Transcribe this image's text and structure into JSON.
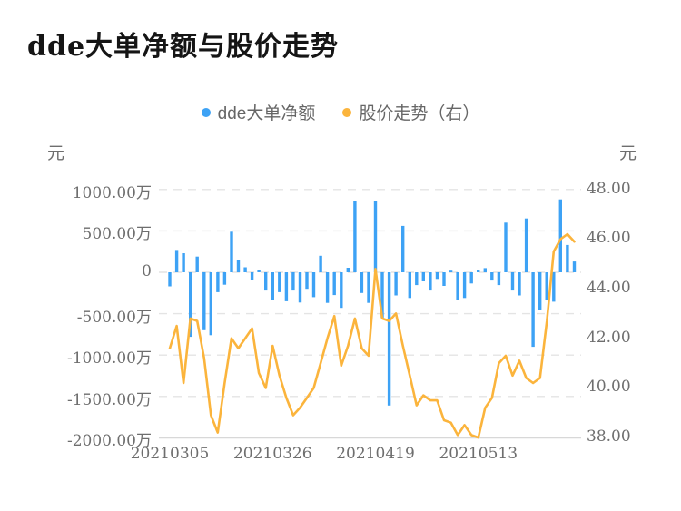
{
  "title": "dde大单净额与股价走势",
  "legend": {
    "items": [
      {
        "label": "dde大单净额",
        "color": "#3DA2F5"
      },
      {
        "label": "股价走势（右）",
        "color": "#FBB43C"
      }
    ]
  },
  "axes": {
    "left": {
      "unit": "元",
      "tick_labels": [
        "1000.00万",
        "500.00万",
        "0",
        "-500.00万",
        "-1000.00万",
        "-1500.00万",
        "-2000.00万"
      ],
      "tick_values_wan": [
        1000,
        500,
        0,
        -500,
        -1000,
        -1500,
        -2000
      ]
    },
    "right": {
      "unit": "元",
      "tick_labels": [
        "48.00",
        "46.00",
        "44.00",
        "42.00",
        "40.00",
        "38.00"
      ],
      "tick_values": [
        48,
        46,
        44,
        42,
        40,
        38
      ]
    },
    "x": {
      "tick_labels": [
        "20210305",
        "20210326",
        "20210419",
        "20210513"
      ],
      "tick_indices": [
        0,
        15,
        30,
        45
      ]
    }
  },
  "colors": {
    "bar": "#3DA2F5",
    "line": "#FBB43C",
    "gridline": "#e4e4e4",
    "baseline": "#d8d8d8"
  },
  "chart_data": {
    "type": "bar+line",
    "title": "dde大单净额与股价走势",
    "n_points": 60,
    "x_tick_labels": [
      "20210305",
      "20210326",
      "20210419",
      "20210513"
    ],
    "x_tick_indices": [
      0,
      15,
      30,
      45
    ],
    "grid": "horizontal-dashed",
    "legend_position": "top-center",
    "left_ylim_wan": [
      -2000,
      1000
    ],
    "right_ylim": [
      38,
      48
    ],
    "series": [
      {
        "name": "dde大单净额",
        "type": "bar",
        "axis": "left",
        "unit": "万元",
        "color": "#3DA2F5",
        "values": [
          -170,
          270,
          230,
          -780,
          190,
          -700,
          -760,
          -240,
          -150,
          490,
          150,
          60,
          -90,
          30,
          -220,
          -330,
          -240,
          -350,
          -220,
          -365,
          -200,
          -300,
          200,
          -370,
          -275,
          -430,
          55,
          860,
          -250,
          -370,
          855,
          -550,
          -1610,
          -280,
          560,
          -310,
          -155,
          -110,
          -220,
          -80,
          -165,
          20,
          -330,
          -310,
          -135,
          25,
          50,
          -100,
          -155,
          600,
          -220,
          -280,
          650,
          -900,
          -450,
          -340,
          -355,
          880,
          330,
          130
        ]
      },
      {
        "name": "股价走势（右）",
        "type": "line",
        "axis": "right",
        "unit": "元",
        "color": "#FBB43C",
        "values": [
          41.6,
          42.5,
          40.2,
          42.8,
          42.7,
          41.2,
          38.9,
          38.2,
          40.2,
          42.0,
          41.6,
          42.0,
          42.4,
          40.6,
          40.0,
          41.7,
          40.5,
          39.6,
          38.9,
          39.2,
          39.6,
          40.0,
          41.0,
          42.0,
          42.9,
          40.9,
          41.7,
          42.8,
          41.6,
          41.3,
          44.8,
          42.8,
          42.7,
          43.0,
          41.7,
          40.5,
          39.3,
          39.7,
          39.5,
          39.5,
          38.7,
          38.6,
          38.1,
          38.5,
          38.1,
          38.0,
          39.2,
          39.6,
          41.0,
          41.3,
          40.5,
          41.1,
          40.4,
          40.2,
          40.4,
          42.7,
          45.5,
          46.0,
          46.2,
          45.9
        ]
      }
    ]
  }
}
